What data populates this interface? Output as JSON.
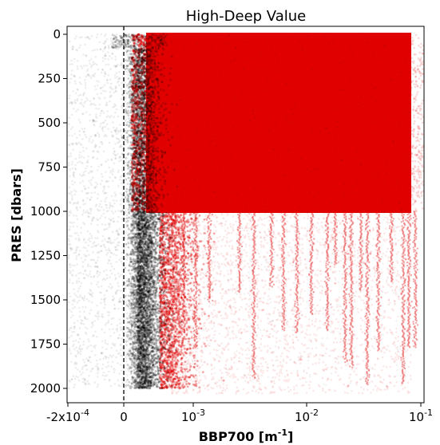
{
  "chart_data": {
    "type": "scatter",
    "title": "High-Deep Value",
    "xlabel": "BBP700 [m",
    "xlabel_sup": "-1",
    "xlabel_end": "]",
    "ylabel": "PRES [dbars]",
    "x_scale": "symlog",
    "xlim": [
      -0.0002,
      0.1
    ],
    "ylim": [
      2100,
      -40
    ],
    "y_inverted": true,
    "grid": false,
    "x_tick_labels": [
      {
        "value": -0.0002,
        "label": "-2x10",
        "sup": "-4"
      },
      {
        "value": 0,
        "label": "0",
        "sup": ""
      },
      {
        "value": 0.001,
        "label": "10",
        "sup": "-3"
      },
      {
        "value": 0.01,
        "label": "10",
        "sup": "-2"
      },
      {
        "value": 0.1,
        "label": "10",
        "sup": "-1"
      }
    ],
    "y_ticks": [
      0,
      250,
      500,
      750,
      1000,
      1250,
      1500,
      1750,
      2000
    ],
    "y_tick_labels": [
      "0",
      "250",
      "500",
      "750",
      "1000",
      "1250",
      "1500",
      "1750",
      "2000"
    ],
    "reference_line": {
      "x": 0,
      "style": "dashed",
      "color": "#000000"
    },
    "series": [
      {
        "color": "#000000",
        "alpha": 0.06,
        "description_values": {
          "dense_core_x_range": [
            0.0,
            0.0005
          ],
          "sparse_x_range": [
            -0.0002,
            0.1
          ],
          "pressure_range": [
            0,
            2000
          ]
        }
      },
      {
        "color": "#e00000",
        "alpha": 0.3,
        "description_values": {
          "upper_block_x_range": [
            5e-05,
            0.06
          ],
          "upper_block_pressure_range": [
            0,
            1000
          ],
          "deep_x_range": [
            0.0003,
            0.07
          ],
          "deep_pressure_range": [
            1000,
            2030
          ]
        }
      }
    ]
  }
}
